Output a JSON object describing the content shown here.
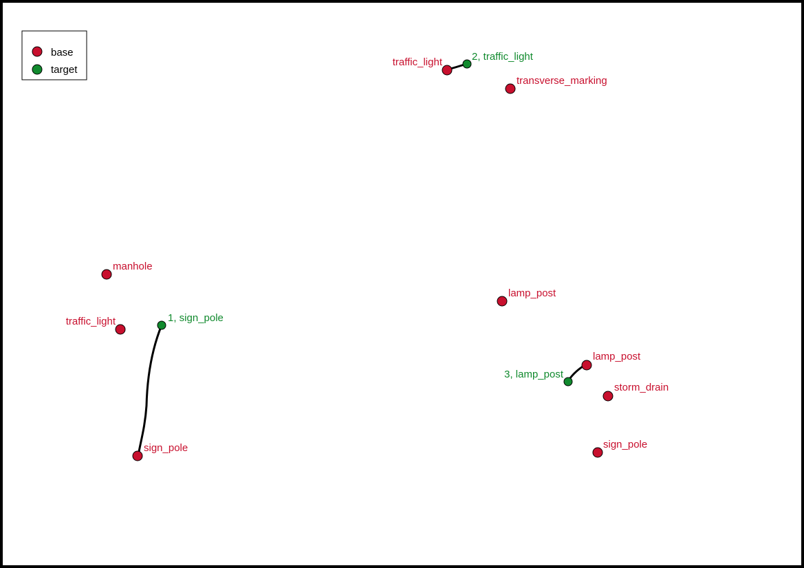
{
  "legend": {
    "base_label": "base",
    "target_label": "target",
    "base_color": "#c8102e",
    "target_color": "#118a2e"
  },
  "base_points": [
    {
      "label": "traffic_light"
    },
    {
      "label": "transverse_marking"
    },
    {
      "label": "manhole"
    },
    {
      "label": "traffic_light"
    },
    {
      "label": "sign_pole"
    },
    {
      "label": "lamp_post"
    },
    {
      "label": "lamp_post"
    },
    {
      "label": "storm_drain"
    },
    {
      "label": "sign_pole"
    }
  ],
  "target_points": [
    {
      "label": "1, sign_pole"
    },
    {
      "label": "2, traffic_light"
    },
    {
      "label": "3, lamp_post"
    }
  ],
  "links": [
    {
      "target": "1, sign_pole",
      "base": "sign_pole"
    },
    {
      "target": "2, traffic_light",
      "base": "traffic_light"
    },
    {
      "target": "3, lamp_post",
      "base": "lamp_post"
    }
  ]
}
